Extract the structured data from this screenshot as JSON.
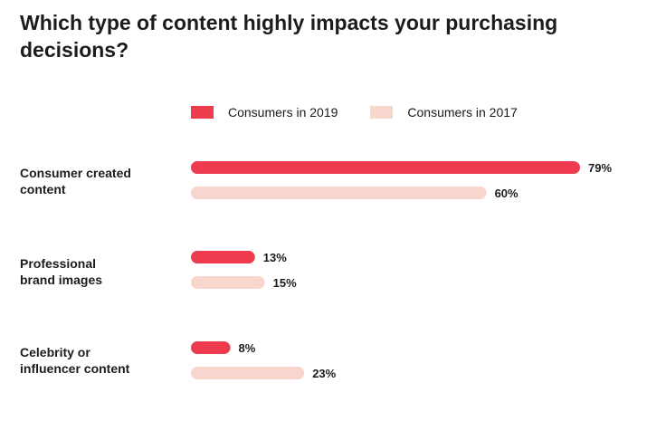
{
  "chart_data": {
    "type": "bar",
    "orientation": "horizontal",
    "title": "Which type of content highly impacts your purchasing decisions?",
    "xlabel": "",
    "ylabel": "",
    "categories": [
      "Consumer created\ncontent",
      "Professional\nbrand images",
      "Celebrity or\ninfluencer content"
    ],
    "series": [
      {
        "name": "Consumers in 2019",
        "values": [
          79,
          13,
          8
        ],
        "labels": [
          "79%",
          "13%",
          "8%"
        ],
        "color": "#ee3b4f"
      },
      {
        "name": "Consumers in 2017",
        "values": [
          60,
          15,
          23
        ],
        "labels": [
          "60%",
          "15%",
          "23%"
        ],
        "color": "#f9d6cd"
      }
    ],
    "xlim": [
      0,
      79
    ],
    "grid": false,
    "legend_position": "top"
  }
}
